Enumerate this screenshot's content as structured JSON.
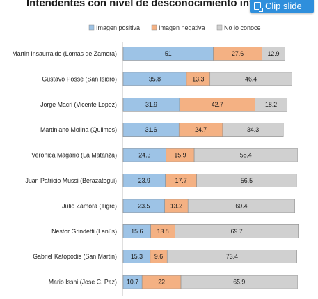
{
  "header": {
    "title": "Intendentes con nivel de desconocimiento info",
    "clip_label": "Clip slide"
  },
  "colors": {
    "positive": "#9dc3e6",
    "negative": "#f4b183",
    "unknown": "#d0d0d0"
  },
  "chart_data": {
    "type": "bar",
    "orientation": "horizontal",
    "stacked": true,
    "title": "Intendentes con nivel de desconocimiento info",
    "legend_position": "top",
    "categories": [
      "Martin Insaurralde (Lomas de Zamora)",
      "Gustavo Posse (San Isidro)",
      "Jorge Macri (Vicente Lopez)",
      "Martiniano Molina (Quilmes)",
      "Veronica Magario (La Matanza)",
      "Juan Patricio Mussi (Berazategui)",
      "Julio Zamora (Tigre)",
      "Nestor Grindetti (Lanús)",
      "Gabriel Katopodis (San Martin)",
      "Mario Isshi (Jose C. Paz)"
    ],
    "series": [
      {
        "name": "Imagen positiva",
        "color": "#9dc3e6",
        "values": [
          51,
          35.8,
          31.9,
          31.6,
          24.3,
          23.9,
          23.5,
          15.6,
          15.3,
          10.7
        ]
      },
      {
        "name": "Imagen negativa",
        "color": "#f4b183",
        "values": [
          27.6,
          13.3,
          42.7,
          24.7,
          15.9,
          17.7,
          13.2,
          13.8,
          9.6,
          22
        ]
      },
      {
        "name": "No lo conoce",
        "color": "#d0d0d0",
        "values": [
          12.9,
          46.4,
          18.2,
          34.3,
          58.4,
          56.5,
          60.4,
          69.7,
          73.4,
          65.9
        ]
      }
    ],
    "value_labels": [
      [
        "51",
        "27.6",
        "12.9"
      ],
      [
        "35.8",
        "13.3",
        "46.4"
      ],
      [
        "31.9",
        "42.7",
        "18.2"
      ],
      [
        "31.6",
        "24.7",
        "34.3"
      ],
      [
        "24.3",
        "15.9",
        "58.4"
      ],
      [
        "23.9",
        "17.7",
        "56.5"
      ],
      [
        "23.5",
        "13.2",
        "60.4"
      ],
      [
        "15.6",
        "13.8",
        "69.7"
      ],
      [
        "15.3",
        "9.6",
        "73.4"
      ],
      [
        "10.7",
        "22",
        "65.9"
      ]
    ]
  }
}
